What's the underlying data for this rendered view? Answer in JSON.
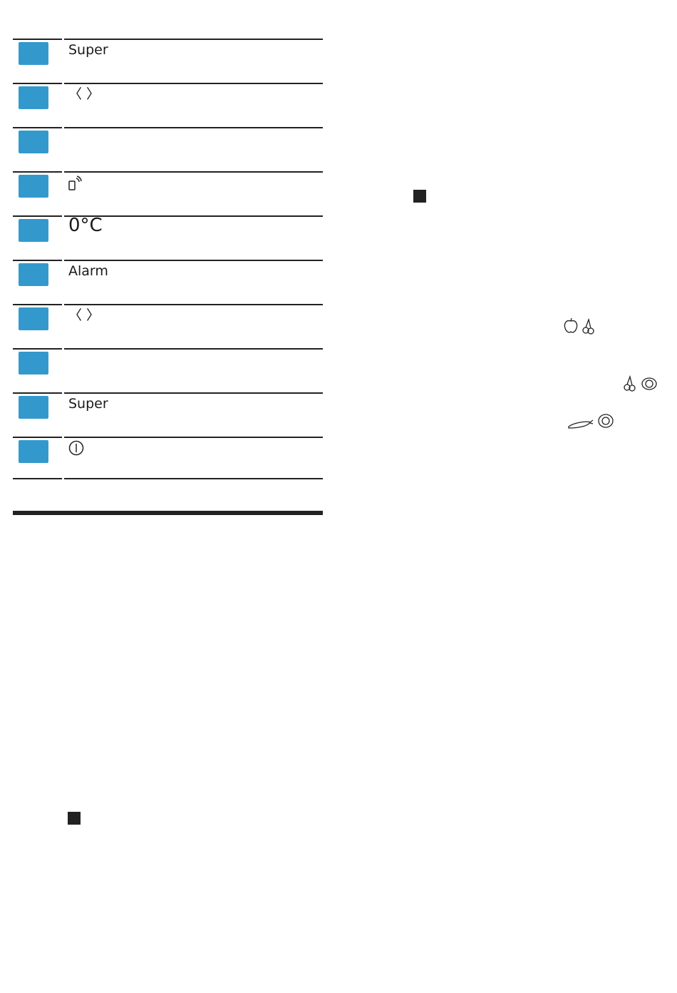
{
  "keys": [
    {
      "label": "Super",
      "icon": ""
    },
    {
      "label": "〈 〉",
      "icon": ""
    },
    {
      "label": "",
      "icon": ""
    },
    {
      "label": "",
      "icon": "phone-wifi-icon"
    },
    {
      "label": "0°C",
      "icon": ""
    },
    {
      "label": "Alarm",
      "icon": ""
    },
    {
      "label": "〈 〉",
      "icon": ""
    },
    {
      "label": "",
      "icon": ""
    },
    {
      "label": "Super",
      "icon": ""
    },
    {
      "label": "",
      "icon": "power-icon"
    }
  ],
  "colors": {
    "key": "#3399cc",
    "rule": "#222222"
  },
  "food_icons": [
    [
      "apple-icon",
      "cherry-icon"
    ],
    [
      "cherry-icon",
      "cabbage-icon"
    ],
    [
      "carrot-icon",
      "cabbage-icon"
    ]
  ]
}
